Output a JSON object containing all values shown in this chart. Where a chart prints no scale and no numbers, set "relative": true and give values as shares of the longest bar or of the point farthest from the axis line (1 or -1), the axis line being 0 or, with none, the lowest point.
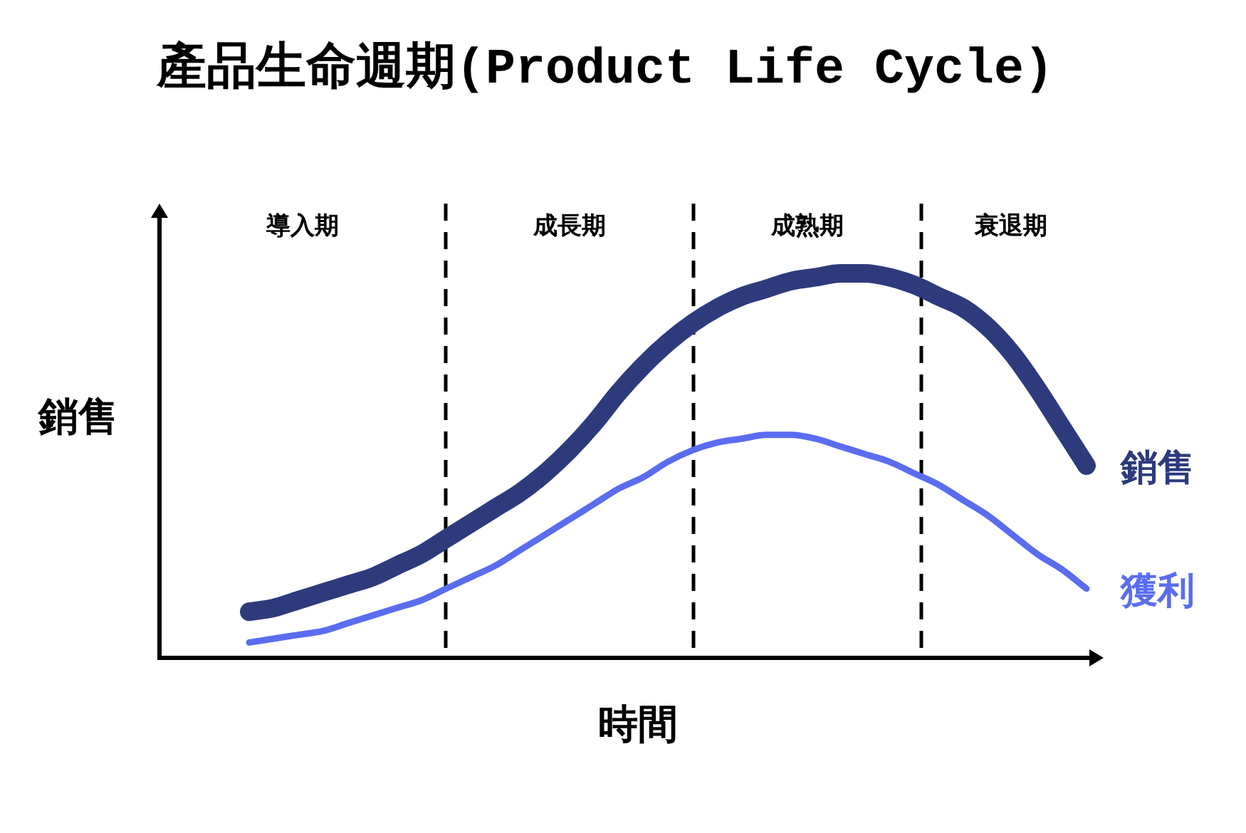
{
  "chart_data": {
    "type": "line",
    "title": "產品生命週期(Product Life Cycle)",
    "xlabel": "時間",
    "ylabel": "銷售",
    "relative": true,
    "categories": [
      null,
      null,
      null,
      null,
      null,
      null,
      null,
      null,
      null,
      null,
      null,
      null,
      null,
      null,
      null,
      null,
      null,
      null,
      null,
      null,
      null,
      null,
      null,
      null,
      null,
      null,
      null,
      null,
      null,
      null,
      null,
      null,
      null,
      null,
      null
    ],
    "series": [
      {
        "name": "銷售",
        "color": "#2d3a7c",
        "values": [
          0.12,
          0.13,
          0.15,
          0.17,
          0.19,
          0.21,
          0.24,
          0.27,
          0.31,
          0.35,
          0.39,
          0.43,
          0.48,
          0.54,
          0.61,
          0.69,
          0.76,
          0.82,
          0.87,
          0.91,
          0.94,
          0.96,
          0.98,
          0.99,
          1.0,
          1.0,
          0.99,
          0.97,
          0.94,
          0.91,
          0.86,
          0.79,
          0.7,
          0.6,
          0.5
        ]
      },
      {
        "name": "獲利",
        "color": "#5a6df0",
        "values": [
          0.04,
          0.05,
          0.06,
          0.07,
          0.09,
          0.11,
          0.13,
          0.15,
          0.18,
          0.21,
          0.24,
          0.28,
          0.32,
          0.36,
          0.4,
          0.44,
          0.47,
          0.51,
          0.54,
          0.56,
          0.57,
          0.58,
          0.58,
          0.57,
          0.55,
          0.53,
          0.51,
          0.48,
          0.45,
          0.41,
          0.37,
          0.32,
          0.27,
          0.23,
          0.18
        ]
      }
    ],
    "annotations": [
      "導入期",
      "成長期",
      "成熟期",
      "衰退期"
    ]
  }
}
